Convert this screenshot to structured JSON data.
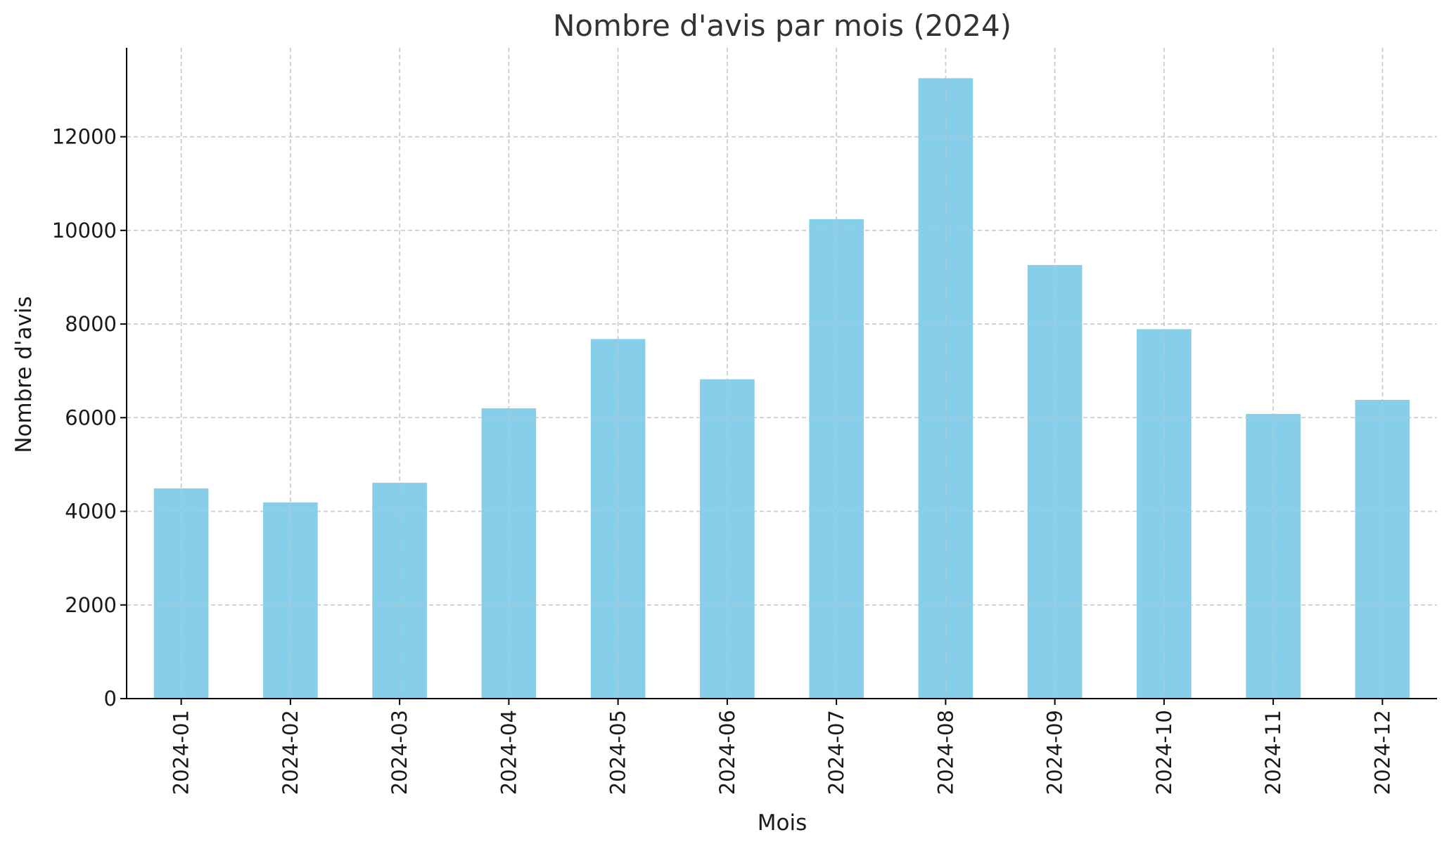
{
  "chart_data": {
    "type": "bar",
    "title": "Nombre d'avis par mois (2024)",
    "xlabel": "Mois",
    "ylabel": "Nombre d'avis",
    "categories": [
      "2024-01",
      "2024-02",
      "2024-03",
      "2024-04",
      "2024-05",
      "2024-06",
      "2024-07",
      "2024-08",
      "2024-09",
      "2024-10",
      "2024-11",
      "2024-12"
    ],
    "values": [
      4490,
      4190,
      4610,
      6200,
      7680,
      6820,
      10240,
      13250,
      9260,
      7890,
      6080,
      6380
    ],
    "ylim": [
      0,
      13900
    ],
    "yticks": [
      0,
      2000,
      4000,
      6000,
      8000,
      10000,
      12000
    ],
    "grid": true,
    "legend": "none",
    "colors": {
      "bar": "#87ceeb",
      "grid": "#c8c8c8",
      "axis": "#000000"
    }
  }
}
